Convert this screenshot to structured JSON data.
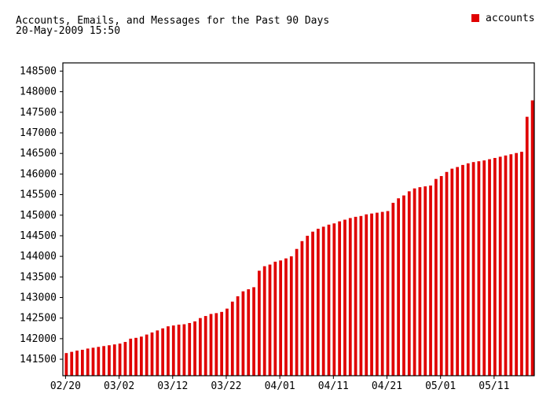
{
  "chart_data": {
    "type": "bar",
    "title": "Accounts, Emails, and Messages for the Past 90 Days",
    "subtitle": "20-May-2009 15:50",
    "xlabel": "",
    "ylabel": "",
    "ylim": [
      141100,
      148700
    ],
    "y_ticks": [
      141500,
      142000,
      142500,
      143000,
      143500,
      144000,
      144500,
      145000,
      145500,
      146000,
      146500,
      147000,
      147500,
      148000,
      148500
    ],
    "x_ticks": [
      "02/20",
      "03/02",
      "03/12",
      "03/22",
      "04/01",
      "04/11",
      "04/21",
      "05/01",
      "05/11"
    ],
    "x_tick_indices": [
      0,
      10,
      20,
      30,
      40,
      50,
      60,
      70,
      80
    ],
    "legend_position": "top-right",
    "grid": false,
    "series": [
      {
        "name": "accounts",
        "color": "#e00000",
        "values": [
          141650,
          141680,
          141710,
          141730,
          141760,
          141780,
          141800,
          141820,
          141840,
          141860,
          141880,
          141920,
          142000,
          142020,
          142050,
          142100,
          142150,
          142200,
          142250,
          142300,
          142320,
          142340,
          142350,
          142380,
          142420,
          142500,
          142550,
          142600,
          142620,
          142650,
          142730,
          142900,
          143030,
          143150,
          143200,
          143250,
          143650,
          143760,
          143800,
          143870,
          143900,
          143950,
          144000,
          144180,
          144370,
          144500,
          144600,
          144670,
          144720,
          144770,
          144800,
          144850,
          144890,
          144930,
          144960,
          144980,
          145020,
          145040,
          145060,
          145080,
          145100,
          145300,
          145410,
          145480,
          145580,
          145650,
          145680,
          145700,
          145720,
          145880,
          145950,
          146050,
          146130,
          146170,
          146220,
          146260,
          146290,
          146310,
          146330,
          146360,
          146390,
          146420,
          146450,
          146480,
          146510,
          146540,
          147390,
          147790
        ]
      }
    ]
  }
}
